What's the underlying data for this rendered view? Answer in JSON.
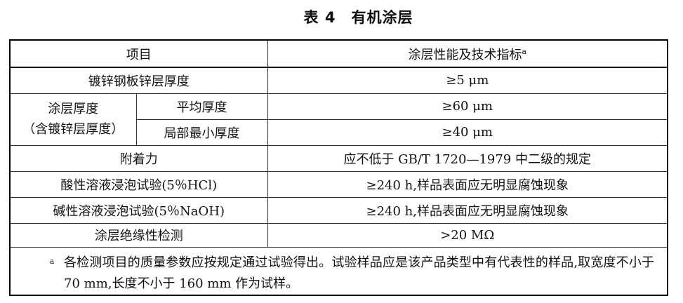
{
  "page": {
    "background_color": "#ffffff",
    "text_color": "#111111",
    "border_color": "#000000"
  },
  "title": "表 4　有机涂层",
  "table": {
    "header": {
      "item": "项目",
      "spec": "涂层性能及技术指标",
      "spec_footnote_marker": "a"
    },
    "rows": {
      "zinc": {
        "item": "镀锌钢板锌层厚度",
        "value": "≥5 μm"
      },
      "thickness_group": {
        "item_line1": "涂层厚度",
        "item_line2": "（含镀锌层厚度）"
      },
      "thickness_avg": {
        "item": "平均厚度",
        "value": "≥60 μm"
      },
      "thickness_min": {
        "item": "局部最小厚度",
        "value": "≥40 μm"
      },
      "adhesion": {
        "item": "附着力",
        "value": "应不低于 GB/T 1720—1979 中二级的规定"
      },
      "acid": {
        "item": "酸性溶液浸泡试验(5％HCl)",
        "value": "≥240 h,样品表面应无明显腐蚀现象"
      },
      "alkali": {
        "item": "碱性溶液浸泡试验(5％NaOH)",
        "value": "≥240 h,样品表面应无明显腐蚀现象"
      },
      "insulation": {
        "item": "涂层绝缘性检测",
        "value": ">20 MΩ"
      }
    },
    "footnote": {
      "marker": "a",
      "text": "各检测项目的质量参数应按规定通过试验得出。试验样品应是该产品类型中有代表性的样品,取宽度不小于 70 mm,长度不小于 160 mm 作为试样。"
    }
  }
}
